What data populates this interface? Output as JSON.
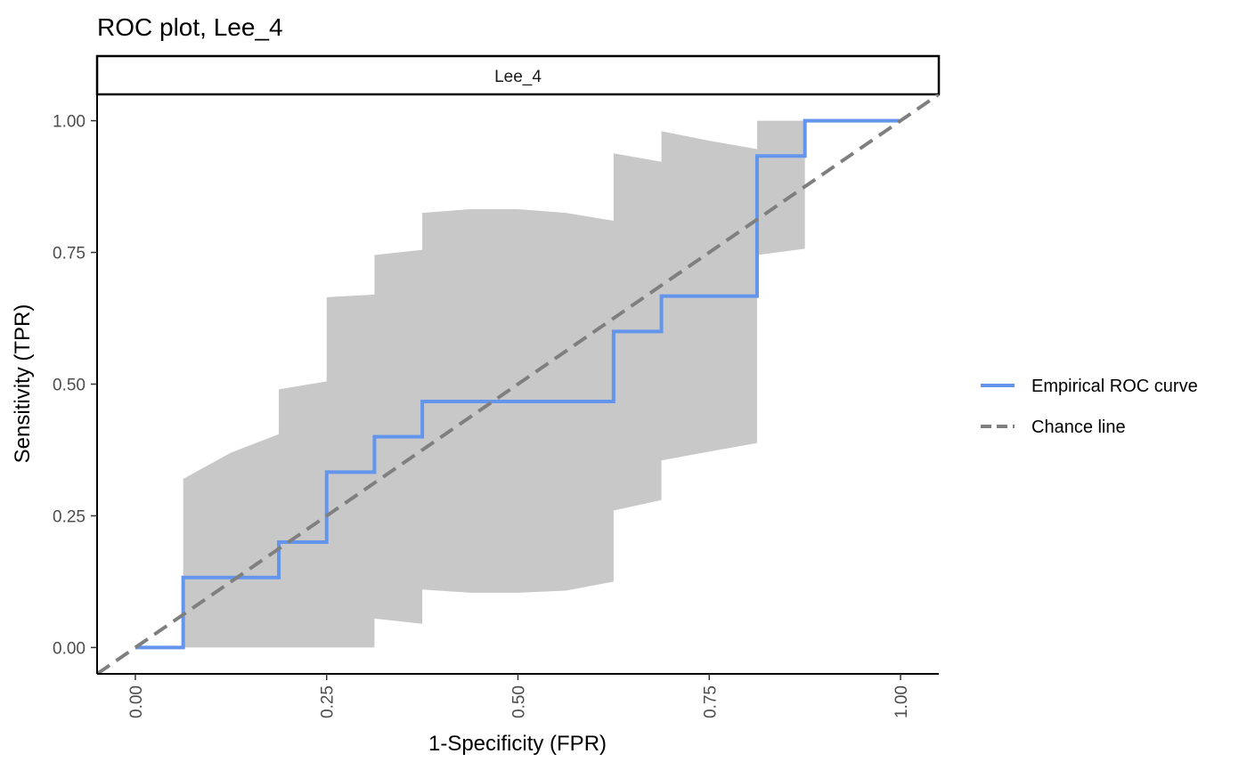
{
  "chart_data": {
    "type": "line",
    "title": "ROC plot, Lee_4",
    "facet_label": "Lee_4",
    "xlabel": "1-Specificity (FPR)",
    "ylabel": "Sensitivity (TPR)",
    "xlim": [
      -0.05,
      1.05
    ],
    "ylim": [
      -0.05,
      1.05
    ],
    "x_ticks": [
      0,
      0.25,
      0.5,
      0.75,
      1
    ],
    "x_tick_labels": [
      "0.00",
      "0.25",
      "0.50",
      "0.75",
      "1.00"
    ],
    "y_ticks": [
      0,
      0.25,
      0.5,
      0.75,
      1
    ],
    "y_tick_labels": [
      "0.00",
      "0.25",
      "0.50",
      "0.75",
      "1.00"
    ],
    "grid": false,
    "legend_position": "right",
    "series": [
      {
        "name": "Empirical ROC curve",
        "kind": "step",
        "color": "#6495ed",
        "x": [
          0,
          0.0625,
          0.0625,
          0.1875,
          0.1875,
          0.25,
          0.25,
          0.3125,
          0.3125,
          0.375,
          0.375,
          0.625,
          0.625,
          0.6875,
          0.6875,
          0.8125,
          0.8125,
          0.875,
          0.875,
          1.0
        ],
        "y": [
          0,
          0,
          0.133,
          0.133,
          0.2,
          0.2,
          0.333,
          0.333,
          0.4,
          0.4,
          0.467,
          0.467,
          0.6,
          0.6,
          0.667,
          0.667,
          0.933,
          0.933,
          1.0,
          1.0
        ]
      },
      {
        "name": "Chance line",
        "kind": "dashed",
        "color": "#7f7f7f",
        "x": [
          -0.05,
          1.05
        ],
        "y": [
          -0.05,
          1.05
        ]
      }
    ],
    "confidence_band": {
      "color": "#c8c8c8",
      "x": [
        0.0625,
        0.125,
        0.1875,
        0.1875,
        0.25,
        0.25,
        0.3125,
        0.3125,
        0.375,
        0.375,
        0.4375,
        0.5,
        0.5625,
        0.625,
        0.625,
        0.6875,
        0.6875,
        0.75,
        0.8125,
        0.8125,
        0.875
      ],
      "upper": [
        0.32,
        0.37,
        0.405,
        0.49,
        0.505,
        0.665,
        0.67,
        0.745,
        0.755,
        0.825,
        0.832,
        0.832,
        0.825,
        0.81,
        0.938,
        0.922,
        0.98,
        0.962,
        0.946,
        1.0,
        1.0
      ],
      "lower": [
        0.0,
        0.0,
        0.0,
        0.0,
        0.0,
        0.0,
        0.0,
        0.055,
        0.045,
        0.11,
        0.104,
        0.104,
        0.108,
        0.125,
        0.26,
        0.28,
        0.355,
        0.372,
        0.388,
        0.745,
        0.757
      ]
    }
  }
}
